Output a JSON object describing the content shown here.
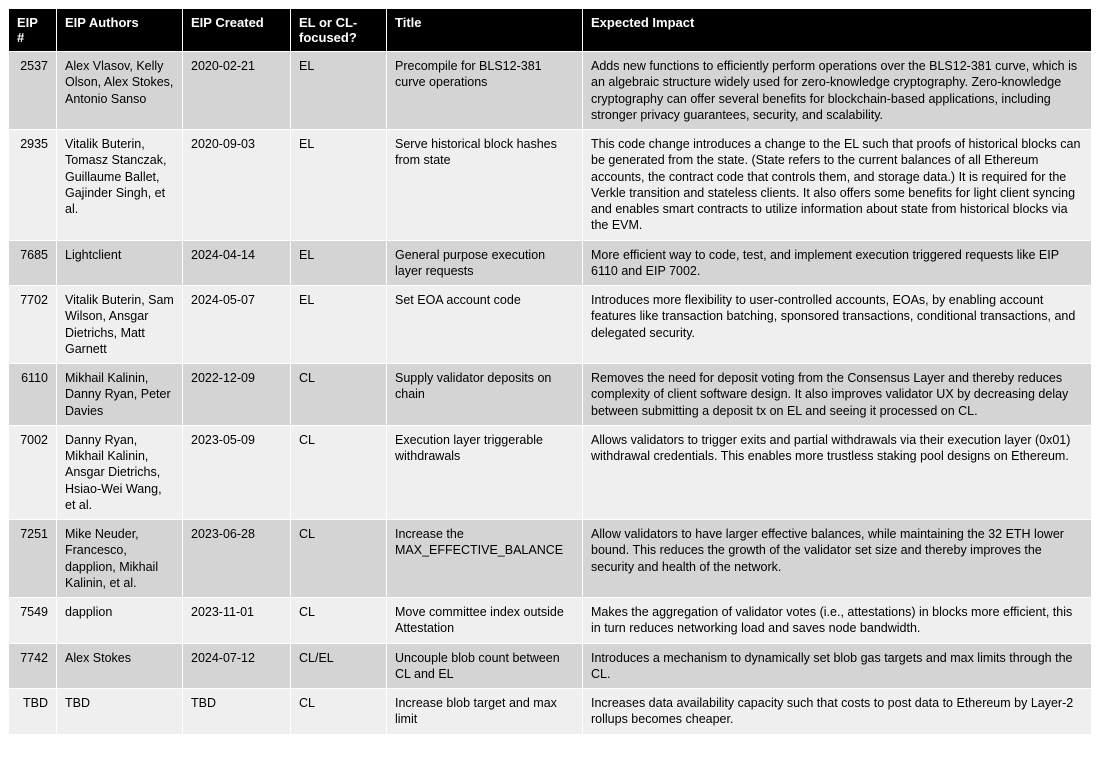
{
  "table": {
    "columns": [
      {
        "key": "eip",
        "label": "EIP #",
        "class": "col-eip"
      },
      {
        "key": "authors",
        "label": "EIP Authors",
        "class": "col-auth"
      },
      {
        "key": "created",
        "label": "EIP Created",
        "class": "col-date"
      },
      {
        "key": "focus",
        "label": "EL or CL-focused?",
        "class": "col-focus"
      },
      {
        "key": "title",
        "label": "Title",
        "class": "col-title"
      },
      {
        "key": "impact",
        "label": "Expected Impact",
        "class": "col-impact"
      }
    ],
    "rows": [
      {
        "eip": "2537",
        "authors": "Alex Vlasov, Kelly Olson, Alex Stokes, Antonio Sanso",
        "created": "2020-02-21",
        "focus": "EL",
        "title": "Precompile for BLS12-381 curve operations",
        "impact": "Adds new functions to efficiently perform operations over the BLS12-381 curve, which is an algebraic structure widely used for zero-knowledge cryptography. Zero-knowledge cryptography can offer several benefits for blockchain-based applications, including stronger privacy guarantees, security, and scalability."
      },
      {
        "eip": "2935",
        "authors": "Vitalik Buterin, Tomasz Stanczak, Guillaume Ballet, Gajinder Singh, et al.",
        "created": "2020-09-03",
        "focus": "EL",
        "title": "Serve historical block hashes from state",
        "impact": "This code change introduces a change to the EL such that proofs of historical blocks can be generated from the state. (State refers to the current balances of all Ethereum accounts, the contract code that controls them, and storage data.) It is required for the Verkle transition and stateless clients. It also offers some benefits for light client syncing and enables smart contracts to utilize information about state from historical blocks via the EVM."
      },
      {
        "eip": "7685",
        "authors": "Lightclient",
        "created": "2024-04-14",
        "focus": "EL",
        "title": "General purpose execution layer requests",
        "impact": "More efficient way to code, test, and implement execution triggered requests like EIP 6110 and EIP 7002."
      },
      {
        "eip": "7702",
        "authors": "Vitalik Buterin, Sam Wilson, Ansgar Dietrichs, Matt Garnett",
        "created": "2024-05-07",
        "focus": "EL",
        "title": "Set EOA account code",
        "impact": "Introduces more flexibility to user-controlled accounts, EOAs, by enabling account features like transaction batching, sponsored transactions, conditional transactions, and delegated security."
      },
      {
        "eip": "6110",
        "authors": "Mikhail Kalinin, Danny Ryan, Peter Davies",
        "created": "2022-12-09",
        "focus": "CL",
        "title": "Supply validator deposits on chain",
        "impact": "Removes the need for deposit voting from the Consensus Layer and thereby reduces complexity of client software design. It also improves validator UX by decreasing delay between submitting a deposit tx on EL and seeing it processed on CL."
      },
      {
        "eip": "7002",
        "authors": "Danny Ryan, Mikhail Kalinin, Ansgar Dietrichs, Hsiao-Wei Wang, et al.",
        "created": "2023-05-09",
        "focus": "CL",
        "title": "Execution layer triggerable withdrawals",
        "impact": "Allows validators to trigger exits and partial withdrawals via their execution layer (0x01) withdrawal credentials. This enables more trustless staking pool designs on Ethereum."
      },
      {
        "eip": "7251",
        "authors": "Mike Neuder, Francesco, dapplion, Mikhail Kalinin, et al.",
        "created": "2023-06-28",
        "focus": "CL",
        "title": "Increase the MAX_EFFECTIVE_BALANCE",
        "impact": "Allow validators to have larger effective balances, while maintaining the 32 ETH lower bound. This reduces the growth of the validator set size and thereby improves the security and health of the network."
      },
      {
        "eip": "7549",
        "authors": "dapplion",
        "created": "2023-11-01",
        "focus": "CL",
        "title": "Move committee index outside Attestation",
        "impact": "Makes the aggregation of validator votes (i.e., attestations) in blocks more efficient, this in turn reduces networking load and saves node bandwidth."
      },
      {
        "eip": "7742",
        "authors": "Alex Stokes",
        "created": "2024-07-12",
        "focus": "CL/EL",
        "title": "Uncouple blob count between CL and EL",
        "impact": "Introduces a mechanism to dynamically set blob gas targets and max limits through the CL."
      },
      {
        "eip": "TBD",
        "authors": "TBD",
        "created": "TBD",
        "focus": "CL",
        "title": "Increase blob target and max limit",
        "impact": "Increases data availability capacity such that costs to post data to Ethereum by Layer-2 rollups becomes cheaper."
      }
    ],
    "style": {
      "header_bg": "#000000",
      "header_fg": "#ffffff",
      "row_odd_bg": "#d4d4d4",
      "row_even_bg": "#efefef",
      "border_color": "#ffffff",
      "font_family": "Arial, Helvetica, sans-serif",
      "font_size_pt": 10,
      "header_font_weight": 700
    }
  }
}
